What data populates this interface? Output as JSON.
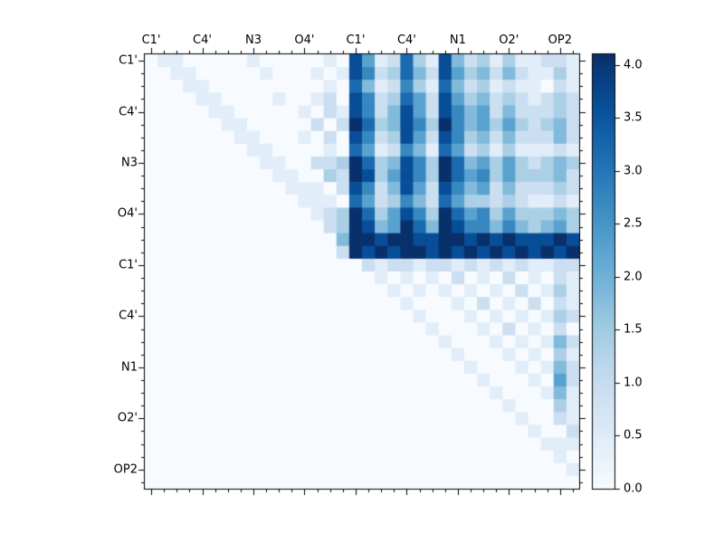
{
  "figure": {
    "background": "#ffffff",
    "frame_color": "#000000"
  },
  "chart_data": {
    "type": "heatmap",
    "title": "",
    "xlabel": "",
    "ylabel": "",
    "n": 34,
    "x_tick_labels": [
      "C1'",
      "C4'",
      "N3",
      "O4'",
      "C1'",
      "C4'",
      "N1",
      "O2'",
      "OP2"
    ],
    "y_tick_labels": [
      "C1'",
      "C4'",
      "N3",
      "O4'",
      "C1'",
      "C4'",
      "N1",
      "O2'",
      "OP2"
    ],
    "label_positions": [
      0,
      4,
      8,
      12,
      16,
      20,
      24,
      28,
      32
    ],
    "colormap": "Blues",
    "vmin": 0.0,
    "vmax": 4.1,
    "value_encoding": "each character of a row string is a digit d (0-9); cell value = d/9*vmax; row 0 = top row",
    "rows": [
      "0110000010000010851273184231311221",
      "0011000001000101862374285342421131",
      "0001100000000010741263174231211021",
      "0000110000100120862375285342321232",
      "0000011000001021862485286452422232",
      "0000001100000202973486396453532342",
      "0000000110001020862385286342422242",
      "0000000011000010751264175231311121",
      "0000000001100223973486397453532343",
      "0000000000110032983586397563533342",
      "0000000000011102862485286452422232",
      "0000000000001110752364275332321121",
      "0000000000000123973586397563533343",
      "0000000000000023984597498664643453",
      "0000000000000004998998899898988898",
      "0000000000000002989899898989898989",
      "0000000000000000021221221212121122",
      "0000000000000000001010102010201021",
      "0000000000000000000101010101020131",
      "0000000000000000000010001020102021",
      "0000000000000000000001000101010132",
      "0000000000000000000000100010201020",
      "0000000000000000000000010001010142",
      "0000000000000000000000001000101031",
      "0000000000000000000000000100010142",
      "0000000000000000000000000010001052",
      "0000000000000000000000000001000141",
      "0000000000000000000000000000100031",
      "0000000000000000000000000000010021",
      "0000000000000000000000000000001002",
      "0000000000000000000000000000000111",
      "0000000000000000000000000000000010",
      "0000000000000000000000000000000001",
      "0000000000000000000000000000000000"
    ],
    "colorbar": {
      "ticks": [
        "0.0",
        "0.5",
        "1.0",
        "1.5",
        "2.0",
        "2.5",
        "3.0",
        "3.5",
        "4.0"
      ],
      "tick_values": [
        0,
        0.5,
        1.0,
        1.5,
        2.0,
        2.5,
        3.0,
        3.5,
        4.0
      ],
      "orientation": "vertical",
      "position": "right"
    },
    "colormap_stops": [
      [
        247,
        251,
        255
      ],
      [
        222,
        235,
        247
      ],
      [
        198,
        219,
        239
      ],
      [
        158,
        202,
        225
      ],
      [
        107,
        174,
        214
      ],
      [
        66,
        146,
        198
      ],
      [
        33,
        113,
        181
      ],
      [
        8,
        81,
        156
      ],
      [
        8,
        48,
        107
      ]
    ],
    "grid": false,
    "legend": false
  }
}
